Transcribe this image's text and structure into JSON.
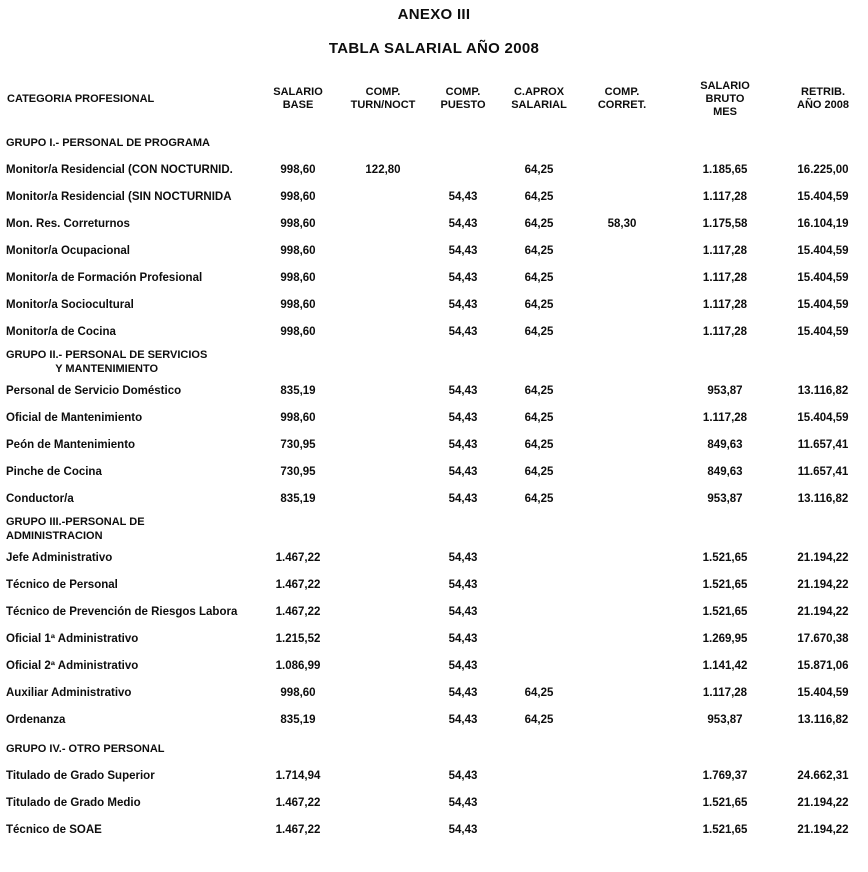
{
  "doc": {
    "title": "ANEXO III",
    "subtitle": "TABLA SALARIAL AÑO 2008"
  },
  "table": {
    "columns": [
      {
        "id": "categoria-profesional",
        "lines": [
          "CATEGORIA PROFESIONAL"
        ]
      },
      {
        "id": "salario-base",
        "lines": [
          "SALARIO",
          "BASE"
        ]
      },
      {
        "id": "comp-turn-noct",
        "lines": [
          "COMP.",
          "TURN/NOCT"
        ]
      },
      {
        "id": "comp-puesto",
        "lines": [
          "COMP.",
          "PUESTO"
        ]
      },
      {
        "id": "c-aprox-salarial",
        "lines": [
          "C.APROX",
          "SALARIAL"
        ]
      },
      {
        "id": "comp-corret",
        "lines": [
          "COMP.",
          "CORRET."
        ]
      },
      {
        "id": "salario-bruto-mes",
        "lines": [
          "SALARIO",
          "BRUTO",
          "MES"
        ]
      },
      {
        "id": "retrib-ano-2008",
        "lines": [
          "RETRIB.",
          "AÑO 2008"
        ]
      }
    ],
    "groups": [
      {
        "label_lines": [
          "GRUPO I.- PERSONAL DE PROGRAMA"
        ],
        "rows": [
          {
            "category": "Monitor/a Residencial (CON NOCTURNID.",
            "values": [
              "998,60",
              "122,80",
              "",
              "64,25",
              "",
              "1.185,65",
              "16.225,00"
            ]
          },
          {
            "category": "Monitor/a Residencial (SIN NOCTURNIDA",
            "values": [
              "998,60",
              "",
              "54,43",
              "64,25",
              "",
              "1.117,28",
              "15.404,59"
            ]
          },
          {
            "category": "Mon. Res. Correturnos",
            "values": [
              "998,60",
              "",
              "54,43",
              "64,25",
              "58,30",
              "1.175,58",
              "16.104,19"
            ]
          },
          {
            "category": "Monitor/a Ocupacional",
            "values": [
              "998,60",
              "",
              "54,43",
              "64,25",
              "",
              "1.117,28",
              "15.404,59"
            ]
          },
          {
            "category": "Monitor/a de Formación Profesional",
            "values": [
              "998,60",
              "",
              "54,43",
              "64,25",
              "",
              "1.117,28",
              "15.404,59"
            ]
          },
          {
            "category": "Monitor/a Sociocultural",
            "values": [
              "998,60",
              "",
              "54,43",
              "64,25",
              "",
              "1.117,28",
              "15.404,59"
            ]
          },
          {
            "category": "Monitor/a de Cocina",
            "values": [
              "998,60",
              "",
              "54,43",
              "64,25",
              "",
              "1.117,28",
              "15.404,59"
            ]
          }
        ]
      },
      {
        "label_lines": [
          "GRUPO II.- PERSONAL DE SERVICIOS",
          "Y MANTENIMIENTO"
        ],
        "rows": [
          {
            "category": "Personal de Servicio Doméstico",
            "values": [
              "835,19",
              "",
              "54,43",
              "64,25",
              "",
              "953,87",
              "13.116,82"
            ]
          },
          {
            "category": "Oficial de Mantenimiento",
            "values": [
              "998,60",
              "",
              "54,43",
              "64,25",
              "",
              "1.117,28",
              "15.404,59"
            ]
          },
          {
            "category": "Peón de Mantenimiento",
            "values": [
              "730,95",
              "",
              "54,43",
              "64,25",
              "",
              "849,63",
              "11.657,41"
            ]
          },
          {
            "category": "Pinche de Cocina",
            "values": [
              "730,95",
              "",
              "54,43",
              "64,25",
              "",
              "849,63",
              "11.657,41"
            ]
          },
          {
            "category": "Conductor/a",
            "values": [
              "835,19",
              "",
              "54,43",
              "64,25",
              "",
              "953,87",
              "13.116,82"
            ]
          }
        ]
      },
      {
        "label_lines": [
          "GRUPO III.-PERSONAL DE",
          "ADMINISTRACION"
        ],
        "rows": [
          {
            "category": "Jefe Administrativo",
            "values": [
              "1.467,22",
              "",
              "54,43",
              "",
              "",
              "1.521,65",
              "21.194,22"
            ]
          },
          {
            "category": "Técnico de Personal",
            "values": [
              "1.467,22",
              "",
              "54,43",
              "",
              "",
              "1.521,65",
              "21.194,22"
            ]
          },
          {
            "category": "Técnico de Prevención de Riesgos Labora",
            "values": [
              "1.467,22",
              "",
              "54,43",
              "",
              "",
              "1.521,65",
              "21.194,22"
            ]
          },
          {
            "category": "Oficial 1ª Administrativo",
            "values": [
              "1.215,52",
              "",
              "54,43",
              "",
              "",
              "1.269,95",
              "17.670,38"
            ]
          },
          {
            "category": "Oficial 2ª Administrativo",
            "values": [
              "1.086,99",
              "",
              "54,43",
              "",
              "",
              "1.141,42",
              "15.871,06"
            ]
          },
          {
            "category": "Auxiliar Administrativo",
            "values": [
              "998,60",
              "",
              "54,43",
              "64,25",
              "",
              "1.117,28",
              "15.404,59"
            ]
          },
          {
            "category": "Ordenanza",
            "values": [
              "835,19",
              "",
              "54,43",
              "64,25",
              "",
              "953,87",
              "13.116,82"
            ]
          }
        ]
      },
      {
        "label_lines": [
          "GRUPO IV.- OTRO PERSONAL"
        ],
        "rows": [
          {
            "category": "Titulado de Grado Superior",
            "values": [
              "1.714,94",
              "",
              "54,43",
              "",
              "",
              "1.769,37",
              "24.662,31"
            ]
          },
          {
            "category": "Titulado de Grado Medio",
            "values": [
              "1.467,22",
              "",
              "54,43",
              "",
              "",
              "1.521,65",
              "21.194,22"
            ]
          },
          {
            "category": "Técnico de SOAE",
            "values": [
              "1.467,22",
              "",
              "54,43",
              "",
              "",
              "1.521,65",
              "21.194,22"
            ]
          }
        ]
      }
    ]
  }
}
